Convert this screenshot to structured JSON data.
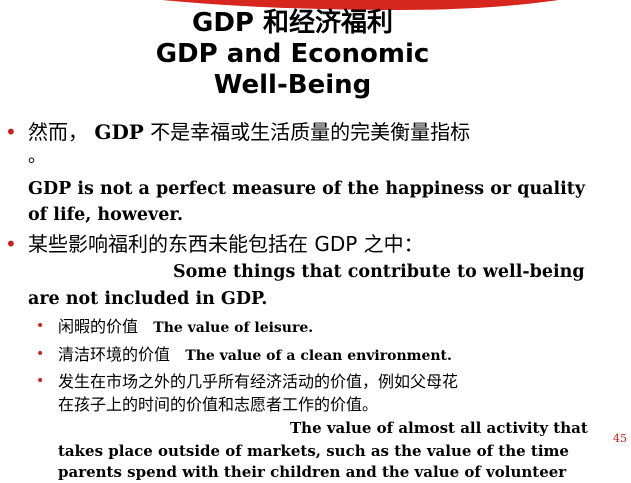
{
  "slide": {
    "title_line1": "GDP 和经济福利",
    "title_line2": "GDP and Economic",
    "title_line3": "Well-Being",
    "accent_color": "#cc1f1f",
    "bullets": [
      {
        "cn_prefix": "然而， ",
        "cn_gdp": "GDP",
        "cn_suffix": " 不是幸福或生活质量的完美衡量指标",
        "cn_cont": "。",
        "en": [
          "GDP is not a perfect measure of the happiness or quality",
          "of life, however."
        ]
      },
      {
        "cn": "某些影响福利的东西未能包括在 GDP 之中：",
        "en": [
          "Some things that contribute to well-being",
          "are not included in GDP."
        ],
        "sub_items": [
          {
            "cn": "闲暇的价值",
            "en": "The value of leisure."
          },
          {
            "cn": "清洁环境的价值",
            "en": "The value of a clean environment."
          },
          {
            "cn": [
              "发生在市场之外的几乎所有经济活动的价值，例如父母花",
              "在孩子上的时间的价值和志愿者工作的价值。"
            ],
            "en": [
              "The value of almost all activity that",
              "takes place outside of markets, such as the value of the time",
              "parents spend with their children and the value of volunteer"
            ]
          }
        ]
      }
    ],
    "page_number": "45"
  }
}
